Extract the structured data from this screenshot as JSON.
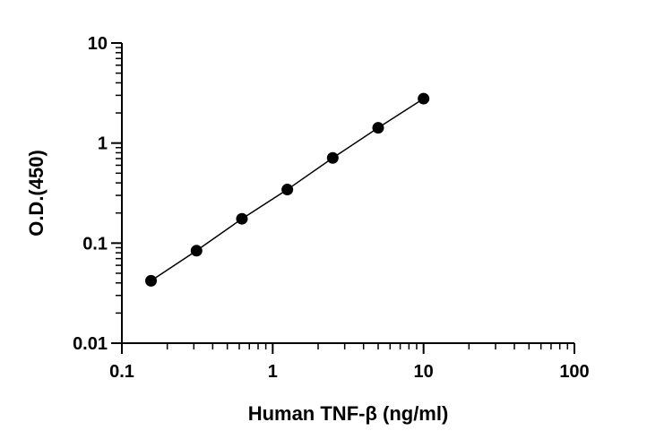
{
  "chart_data": {
    "type": "scatter",
    "xscale": "log",
    "yscale": "log",
    "xlabel": "Human TNF-β (ng/ml)",
    "ylabel": "O.D.(450)",
    "xlim": [
      0.1,
      100
    ],
    "ylim": [
      0.01,
      10
    ],
    "x_ticks": [
      0.1,
      1,
      10,
      100
    ],
    "x_tick_labels": [
      "0.1",
      "1",
      "10",
      "100"
    ],
    "y_ticks": [
      0.01,
      0.1,
      1,
      10
    ],
    "y_tick_labels": [
      "0.01",
      "0.1",
      "1",
      "10"
    ],
    "grid": false,
    "fit_line": true,
    "series": [
      {
        "points": [
          {
            "x": 0.156,
            "y": 0.042
          },
          {
            "x": 0.3125,
            "y": 0.084
          },
          {
            "x": 0.625,
            "y": 0.175
          },
          {
            "x": 1.25,
            "y": 0.343
          },
          {
            "x": 2.5,
            "y": 0.71
          },
          {
            "x": 5,
            "y": 1.42
          },
          {
            "x": 10,
            "y": 2.78
          }
        ]
      }
    ],
    "colors": {
      "axis": "#000000",
      "marker": "#000000",
      "line": "#000000"
    }
  }
}
